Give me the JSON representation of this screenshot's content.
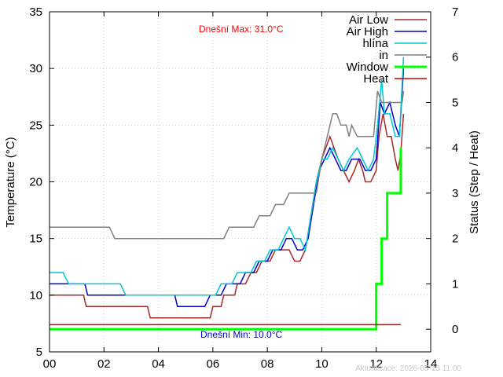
{
  "chart_data": {
    "type": "line",
    "xlabel": "",
    "ylabel": "Temperature (°C)",
    "y2label": "Status (Step / Heat)",
    "xlim": [
      0,
      14
    ],
    "ylim": [
      5,
      35
    ],
    "y2lim": [
      -0.5,
      7
    ],
    "x_ticks": [
      {
        "v": 0,
        "label": "00"
      },
      {
        "v": 2,
        "label": "02"
      },
      {
        "v": 4,
        "label": "04"
      },
      {
        "v": 6,
        "label": "06"
      },
      {
        "v": 8,
        "label": "08"
      },
      {
        "v": 10,
        "label": "10"
      },
      {
        "v": 12,
        "label": "12"
      },
      {
        "v": 14,
        "label": "14"
      }
    ],
    "y_ticks": [
      5,
      10,
      15,
      20,
      25,
      30,
      35
    ],
    "y2_ticks": [
      0,
      1,
      2,
      3,
      4,
      5,
      6,
      7
    ],
    "grid": true,
    "legend_position": "top-right",
    "annotations": {
      "max_label": "Dnešní Max: 31.0°C",
      "min_label": "Dnešní Min: 10.0°C",
      "updated_label": "Aktualizace: 2026-05-15 11:00"
    },
    "colors": {
      "max_label": "#ff0000",
      "min_label": "#0000cc",
      "updated_label": "#c8c8c8"
    },
    "series": [
      {
        "name": "Air Low",
        "axis": "y",
        "color": "#a52a2a",
        "width": 1.5,
        "points": [
          [
            0,
            10
          ],
          [
            1.25,
            10
          ],
          [
            1.35,
            9
          ],
          [
            3.6,
            9
          ],
          [
            3.7,
            8
          ],
          [
            5.9,
            8
          ],
          [
            6.0,
            9
          ],
          [
            6.3,
            9
          ],
          [
            6.4,
            10
          ],
          [
            6.8,
            10
          ],
          [
            6.9,
            11
          ],
          [
            7.2,
            11
          ],
          [
            7.4,
            12
          ],
          [
            7.6,
            12
          ],
          [
            7.8,
            13
          ],
          [
            8.1,
            13
          ],
          [
            8.3,
            14
          ],
          [
            8.8,
            14
          ],
          [
            9.0,
            13
          ],
          [
            9.2,
            13
          ],
          [
            9.4,
            14
          ],
          [
            9.6,
            17
          ],
          [
            9.8,
            20
          ],
          [
            10.0,
            22
          ],
          [
            10.3,
            24
          ],
          [
            10.45,
            23
          ],
          [
            10.6,
            22
          ],
          [
            10.8,
            21
          ],
          [
            11.0,
            20
          ],
          [
            11.2,
            21
          ],
          [
            11.35,
            22
          ],
          [
            11.5,
            21
          ],
          [
            11.6,
            20
          ],
          [
            11.8,
            20
          ],
          [
            12.0,
            21
          ],
          [
            12.1,
            24
          ],
          [
            12.25,
            26
          ],
          [
            12.4,
            24
          ],
          [
            12.55,
            24
          ],
          [
            12.7,
            22
          ],
          [
            12.8,
            21
          ],
          [
            12.9,
            22.5
          ],
          [
            13.0,
            26
          ]
        ]
      },
      {
        "name": "Air High",
        "axis": "y",
        "color": "#0000cc",
        "width": 1.5,
        "points": [
          [
            0,
            11
          ],
          [
            1.3,
            11
          ],
          [
            1.4,
            10
          ],
          [
            2.9,
            10
          ],
          [
            3.0,
            10
          ],
          [
            4.6,
            10
          ],
          [
            4.7,
            9
          ],
          [
            5.7,
            9
          ],
          [
            5.9,
            10
          ],
          [
            6.3,
            10
          ],
          [
            6.5,
            11
          ],
          [
            7.0,
            11
          ],
          [
            7.2,
            12
          ],
          [
            7.5,
            12
          ],
          [
            7.7,
            13
          ],
          [
            8.0,
            13
          ],
          [
            8.2,
            14
          ],
          [
            8.5,
            14
          ],
          [
            8.7,
            15
          ],
          [
            8.9,
            15
          ],
          [
            9.1,
            14
          ],
          [
            9.3,
            14
          ],
          [
            9.5,
            15
          ],
          [
            9.7,
            18
          ],
          [
            9.9,
            21
          ],
          [
            10.1,
            22
          ],
          [
            10.3,
            23
          ],
          [
            10.5,
            22
          ],
          [
            10.7,
            21
          ],
          [
            10.9,
            21
          ],
          [
            11.1,
            22
          ],
          [
            11.4,
            22
          ],
          [
            11.6,
            21
          ],
          [
            11.8,
            21
          ],
          [
            12.0,
            22
          ],
          [
            12.15,
            27
          ],
          [
            12.3,
            26
          ],
          [
            12.5,
            27
          ],
          [
            12.7,
            25
          ],
          [
            12.85,
            24
          ],
          [
            13.0,
            30
          ]
        ]
      },
      {
        "name": "hlína",
        "axis": "y",
        "color": "#00c8d2",
        "width": 1.5,
        "points": [
          [
            0,
            12
          ],
          [
            0.5,
            12
          ],
          [
            0.7,
            11
          ],
          [
            2.6,
            11
          ],
          [
            2.8,
            10
          ],
          [
            6.1,
            10
          ],
          [
            6.3,
            11
          ],
          [
            6.7,
            11
          ],
          [
            6.9,
            12
          ],
          [
            7.4,
            12
          ],
          [
            7.6,
            13
          ],
          [
            7.9,
            13
          ],
          [
            8.1,
            14
          ],
          [
            8.4,
            14
          ],
          [
            8.6,
            15
          ],
          [
            8.8,
            16
          ],
          [
            9.0,
            15
          ],
          [
            9.2,
            15
          ],
          [
            9.4,
            14
          ],
          [
            9.6,
            17
          ],
          [
            9.8,
            20
          ],
          [
            10.0,
            22
          ],
          [
            10.2,
            22
          ],
          [
            10.4,
            23
          ],
          [
            10.6,
            22
          ],
          [
            10.8,
            21
          ],
          [
            11.0,
            22
          ],
          [
            11.3,
            23
          ],
          [
            11.5,
            22
          ],
          [
            11.7,
            21
          ],
          [
            11.9,
            22
          ],
          [
            12.05,
            25
          ],
          [
            12.2,
            29
          ],
          [
            12.3,
            26
          ],
          [
            12.5,
            26
          ],
          [
            12.7,
            24
          ],
          [
            12.85,
            24
          ],
          [
            13.0,
            31
          ]
        ]
      },
      {
        "name": "in",
        "axis": "y",
        "color": "#808080",
        "width": 1.5,
        "points": [
          [
            0,
            16
          ],
          [
            2.2,
            16
          ],
          [
            2.4,
            15
          ],
          [
            6.4,
            15
          ],
          [
            6.6,
            16
          ],
          [
            7.5,
            16
          ],
          [
            7.7,
            17
          ],
          [
            8.1,
            17
          ],
          [
            8.3,
            18
          ],
          [
            8.6,
            18
          ],
          [
            8.8,
            19
          ],
          [
            9.8,
            19
          ],
          [
            10.0,
            22
          ],
          [
            10.2,
            24
          ],
          [
            10.4,
            26
          ],
          [
            10.55,
            26
          ],
          [
            10.7,
            25
          ],
          [
            10.9,
            25
          ],
          [
            11.0,
            24
          ],
          [
            11.1,
            25
          ],
          [
            11.3,
            24
          ],
          [
            11.7,
            24
          ],
          [
            11.9,
            24
          ],
          [
            12.05,
            28
          ],
          [
            12.2,
            27
          ],
          [
            12.8,
            27
          ],
          [
            12.95,
            27
          ],
          [
            13.0,
            28
          ]
        ]
      },
      {
        "name": "Window",
        "axis": "y2",
        "color": "#00ff00",
        "width": 3,
        "points": [
          [
            0,
            0
          ],
          [
            12.0,
            0
          ],
          [
            12.0,
            1
          ],
          [
            12.2,
            1
          ],
          [
            12.2,
            2
          ],
          [
            12.4,
            2
          ],
          [
            12.4,
            3
          ],
          [
            12.9,
            3
          ],
          [
            12.9,
            4
          ]
        ]
      },
      {
        "name": "Heat",
        "axis": "y2",
        "color": "#cc0000",
        "width": 1.5,
        "points": [
          [
            0,
            0.1
          ],
          [
            12.9,
            0.1
          ]
        ]
      }
    ]
  }
}
